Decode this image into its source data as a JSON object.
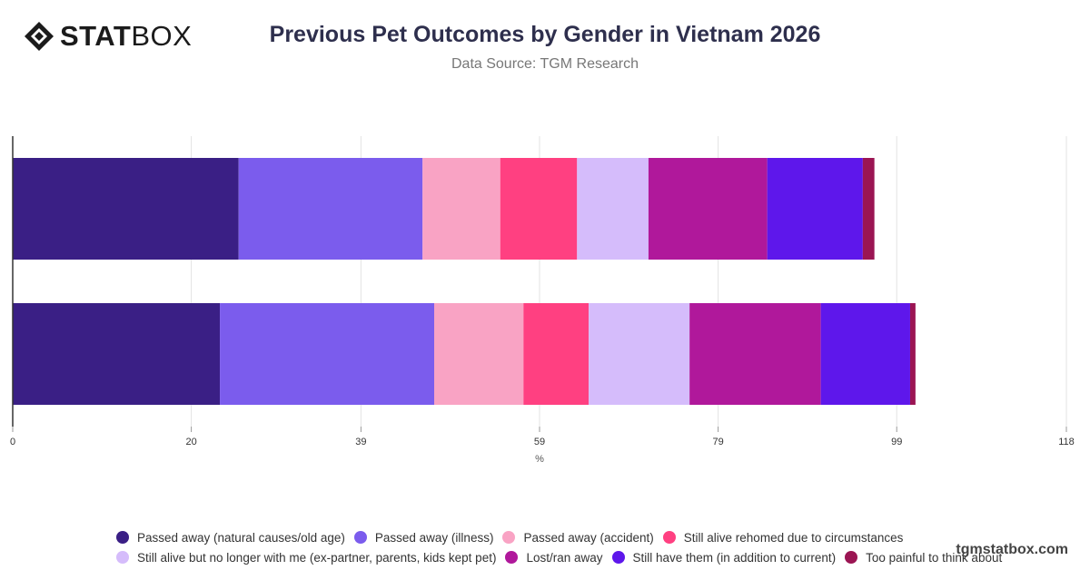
{
  "header": {
    "logo_bold": "STAT",
    "logo_light": "BOX",
    "title": "Previous Pet Outcomes by Gender in Vietnam 2026",
    "subtitle": "Data Source: TGM Research"
  },
  "watermark": "tgmstatbox.com",
  "colors": {
    "title": "#2e2f4d",
    "axis": "#333333",
    "grid": "#e3e3e3"
  },
  "chart_data": {
    "type": "bar",
    "orientation": "horizontal",
    "stacked": true,
    "categories": [
      "",
      ""
    ],
    "xlabel": "%",
    "xlim": [
      0,
      118
    ],
    "x_ticks": [
      0,
      20,
      39,
      59,
      79,
      99,
      118
    ],
    "grid": true,
    "legend_position": "bottom",
    "series": [
      {
        "name": "Passed away (natural causes/old age)",
        "color": "#3a1f85",
        "values": [
          25.3,
          23.2
        ]
      },
      {
        "name": "Passed away (illness)",
        "color": "#7b5ced",
        "values": [
          20.6,
          24.0
        ]
      },
      {
        "name": "Passed away (accident)",
        "color": "#f9a3c4",
        "values": [
          8.7,
          10.0
        ]
      },
      {
        "name": "Still alive rehomed due to circumstances",
        "color": "#ff4081",
        "values": [
          8.6,
          7.3
        ]
      },
      {
        "name": "Still alive but no longer with me (ex-partner, parents, kids kept pet)",
        "color": "#d5bcfb",
        "values": [
          8.0,
          11.3
        ]
      },
      {
        "name": "Lost/ran away",
        "color": "#b0189b",
        "values": [
          13.3,
          14.7
        ]
      },
      {
        "name": "Still have them (in addition to current)",
        "color": "#5e17eb",
        "values": [
          10.7,
          10.0
        ]
      },
      {
        "name": "Too painful to think about",
        "color": "#9b1553",
        "values": [
          1.3,
          0.6
        ]
      }
    ]
  }
}
